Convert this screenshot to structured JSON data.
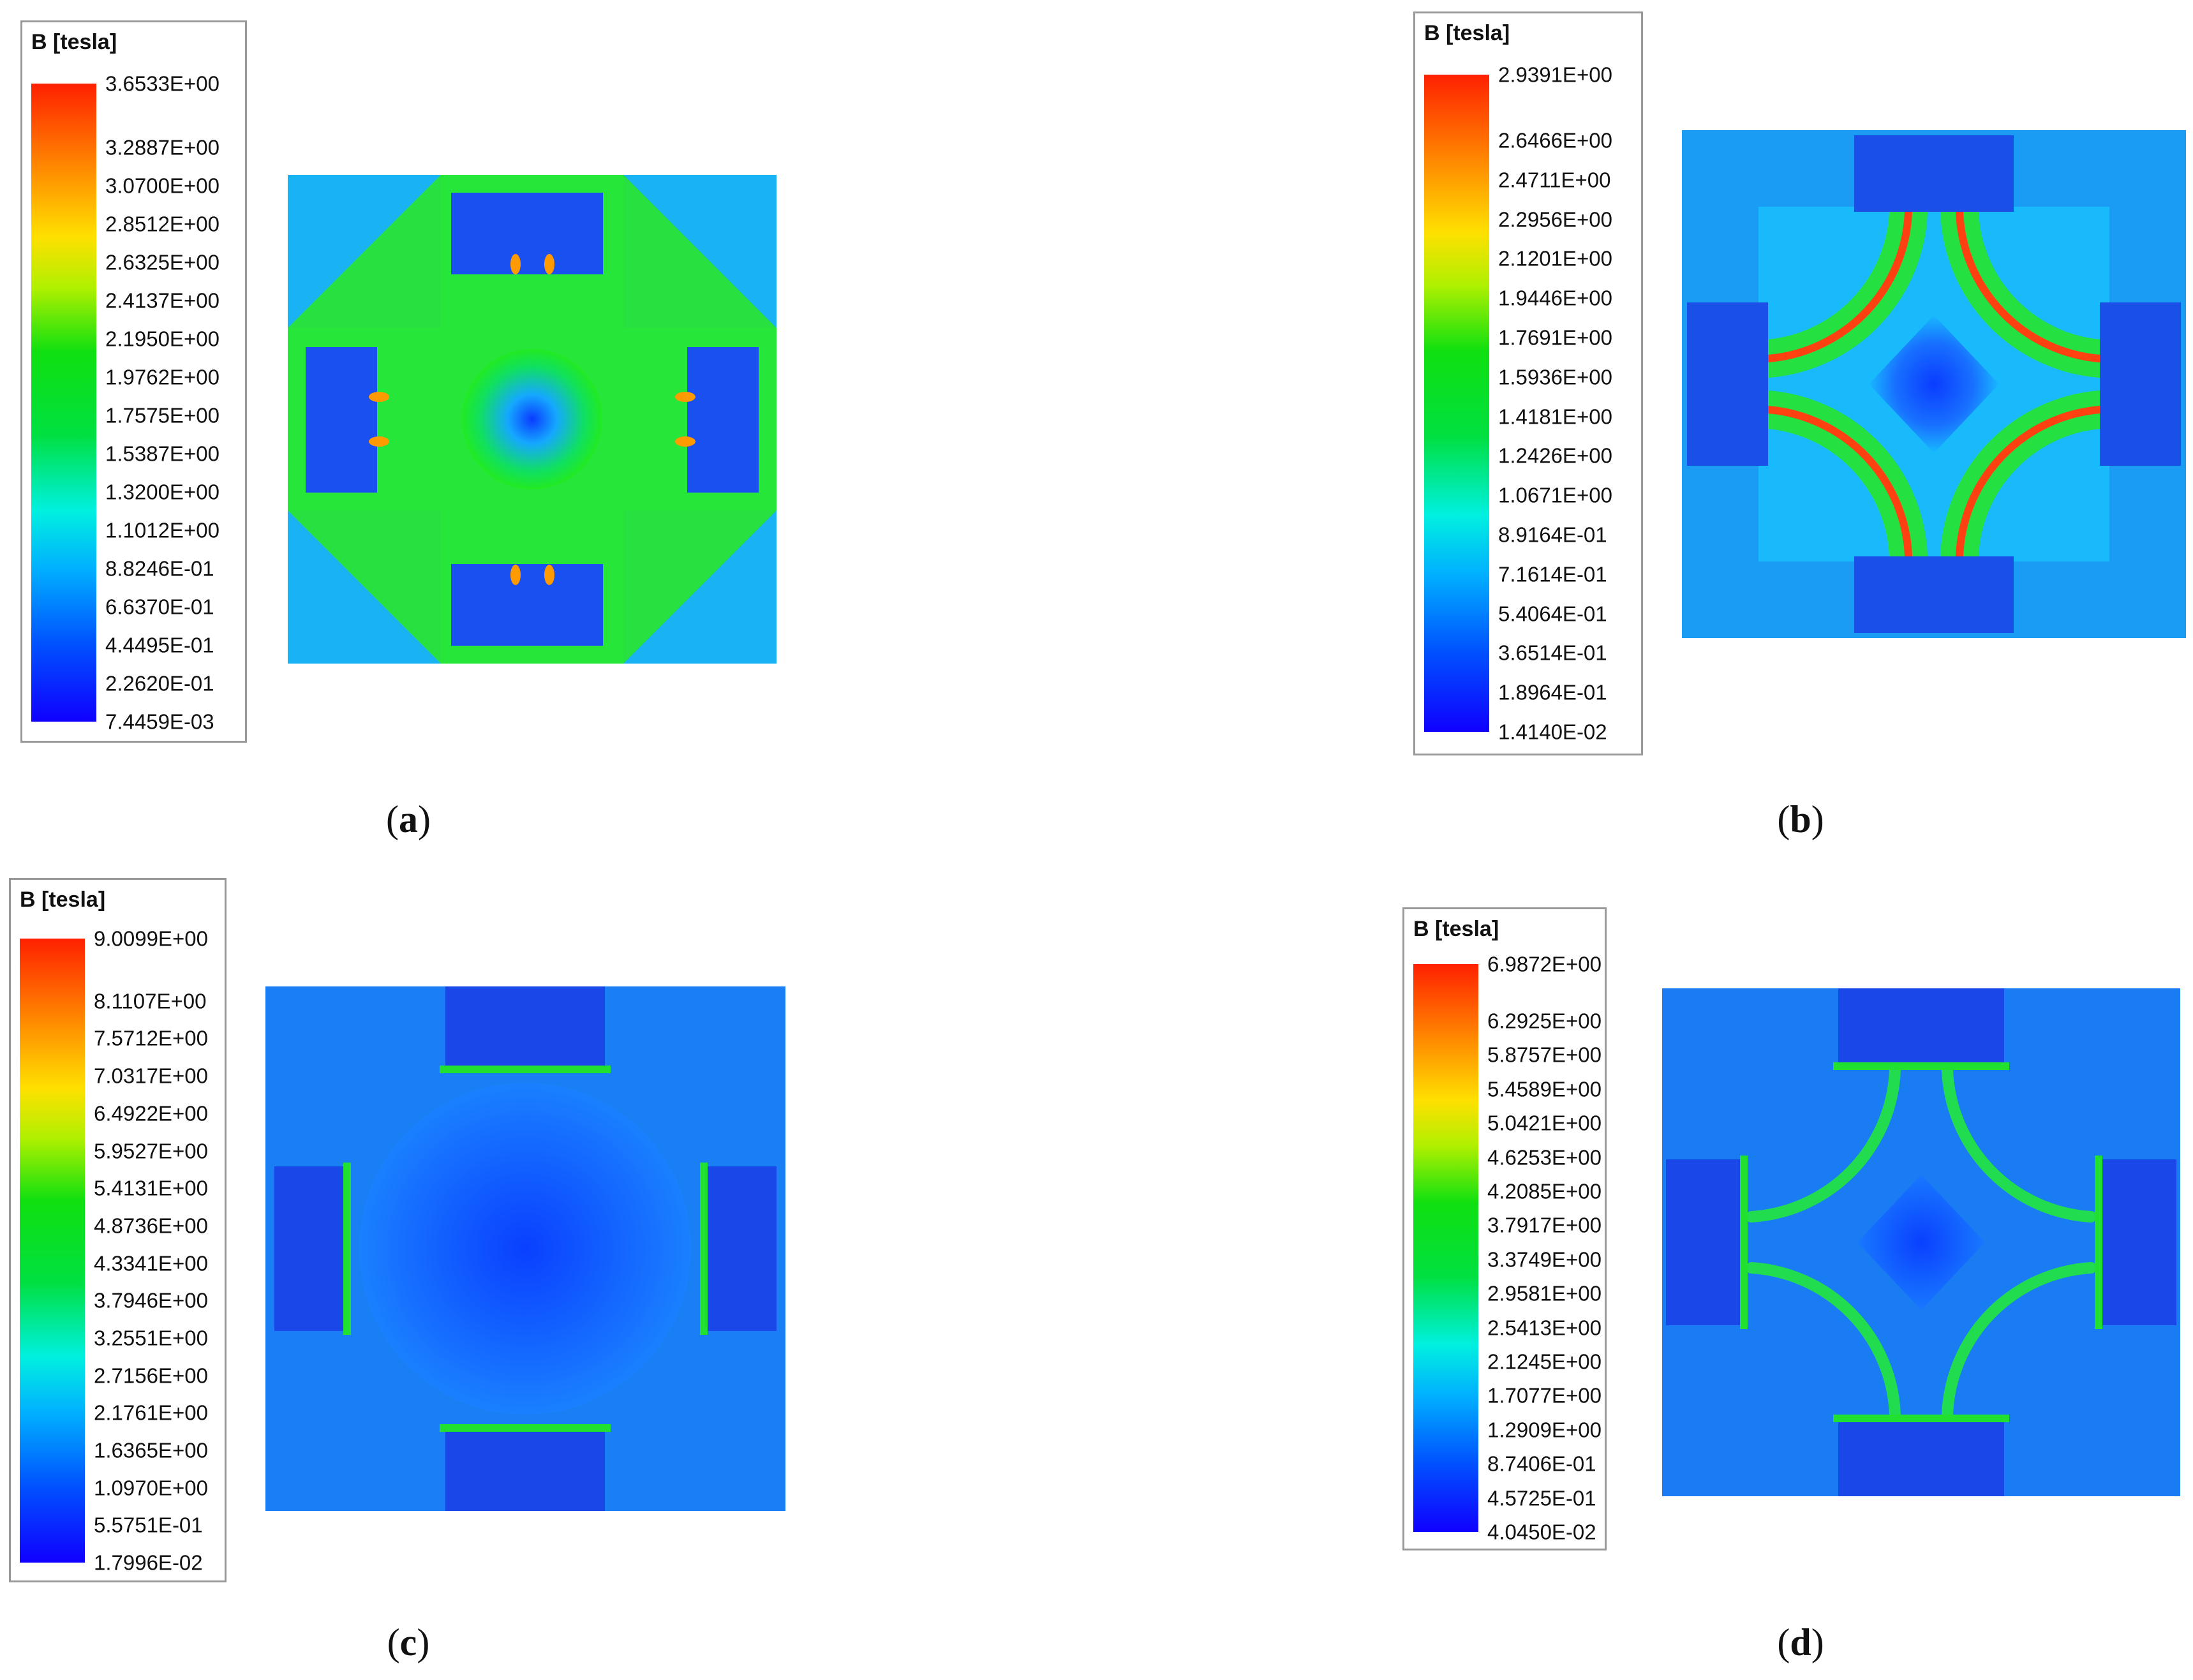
{
  "panels": [
    {
      "id": "a",
      "caption": "a",
      "legend_title": "B [tesla]",
      "ticks": [
        "3.6533E+00",
        "3.2887E+00",
        "3.0700E+00",
        "2.8512E+00",
        "2.6325E+00",
        "2.4137E+00",
        "2.1950E+00",
        "1.9762E+00",
        "1.7575E+00",
        "1.5387E+00",
        "1.3200E+00",
        "1.1012E+00",
        "8.8246E-01",
        "6.6370E-01",
        "4.4495E-01",
        "2.2620E-01",
        "7.4459E-03"
      ],
      "field_map": "type-a"
    },
    {
      "id": "b",
      "caption": "b",
      "legend_title": "B [tesla]",
      "ticks": [
        "2.9391E+00",
        "2.6466E+00",
        "2.4711E+00",
        "2.2956E+00",
        "2.1201E+00",
        "1.9446E+00",
        "1.7691E+00",
        "1.5936E+00",
        "1.4181E+00",
        "1.2426E+00",
        "1.0671E+00",
        "8.9164E-01",
        "7.1614E-01",
        "5.4064E-01",
        "3.6514E-01",
        "1.8964E-01",
        "1.4140E-02"
      ],
      "field_map": "type-b"
    },
    {
      "id": "c",
      "caption": "c",
      "legend_title": "B [tesla]",
      "ticks": [
        "9.0099E+00",
        "8.1107E+00",
        "7.5712E+00",
        "7.0317E+00",
        "6.4922E+00",
        "5.9527E+00",
        "5.4131E+00",
        "4.8736E+00",
        "4.3341E+00",
        "3.7946E+00",
        "3.2551E+00",
        "2.7156E+00",
        "2.1761E+00",
        "1.6365E+00",
        "1.0970E+00",
        "5.5751E-01",
        "1.7996E-02"
      ],
      "field_map": "type-c"
    },
    {
      "id": "d",
      "caption": "d",
      "legend_title": "B [tesla]",
      "ticks": [
        "6.9872E+00",
        "6.2925E+00",
        "5.8757E+00",
        "5.4589E+00",
        "5.0421E+00",
        "4.6253E+00",
        "4.2085E+00",
        "3.7917E+00",
        "3.3749E+00",
        "2.9581E+00",
        "2.5413E+00",
        "2.1245E+00",
        "1.7077E+00",
        "1.2909E+00",
        "8.7406E-01",
        "4.5725E-01",
        "4.0450E-02"
      ],
      "field_map": "type-d"
    }
  ]
}
